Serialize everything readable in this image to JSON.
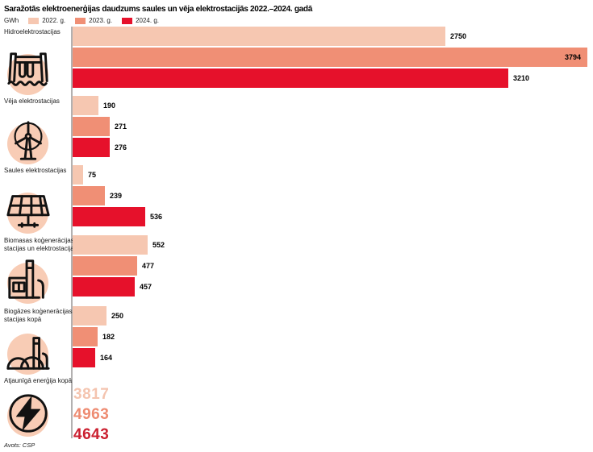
{
  "header": {
    "title": "Saražotās elektroenerģijas daudzums saules un vēja elektrostacijās 2022.–2024. gadā"
  },
  "legend": {
    "unit": "GWh",
    "items": [
      {
        "label": "2022. g.",
        "color": "#f6c7b1"
      },
      {
        "label": "2023. g.",
        "color": "#f08f75"
      },
      {
        "label": "2024. g.",
        "color": "#e6112b"
      }
    ]
  },
  "chart_data": {
    "type": "bar",
    "orientation": "horizontal",
    "unit": "GWh",
    "xlim": [
      0,
      3794
    ],
    "grid": false,
    "legend_position": "top",
    "series_names": [
      "2022. g.",
      "2023. g.",
      "2024. g."
    ],
    "series_colors": [
      "#f6c7b1",
      "#f08f75",
      "#e6112b"
    ],
    "total_colors": [
      "#f4c4af",
      "#ee8b71",
      "#cb2030"
    ],
    "groups": [
      {
        "label": "Hidroelektrostacijas",
        "icon": "dam-icon",
        "display": "bars",
        "values": [
          2750,
          3794,
          3210
        ]
      },
      {
        "label": "Vēja elektrostacijas",
        "icon": "wind-turbine-icon",
        "display": "bars",
        "values": [
          190,
          271,
          276
        ]
      },
      {
        "label": "Saules elektrostacijas",
        "icon": "solar-panel-icon",
        "display": "bars",
        "values": [
          75,
          239,
          536
        ]
      },
      {
        "label": "Biomasas koģenerācijas stacijas un elektrostacijas",
        "icon": "factory-icon",
        "display": "bars",
        "values": [
          552,
          477,
          457
        ]
      },
      {
        "label": "Biogāzes koģenerācijas stacijas kopā",
        "icon": "biogas-plant-icon",
        "display": "bars",
        "values": [
          250,
          182,
          164
        ]
      },
      {
        "label": "Atjaunīgā enerģija kopā",
        "icon": "lightning-icon",
        "display": "numbers",
        "values": [
          3817,
          4963,
          4643
        ]
      }
    ]
  },
  "footer": {
    "source": "Avots: CSP"
  }
}
